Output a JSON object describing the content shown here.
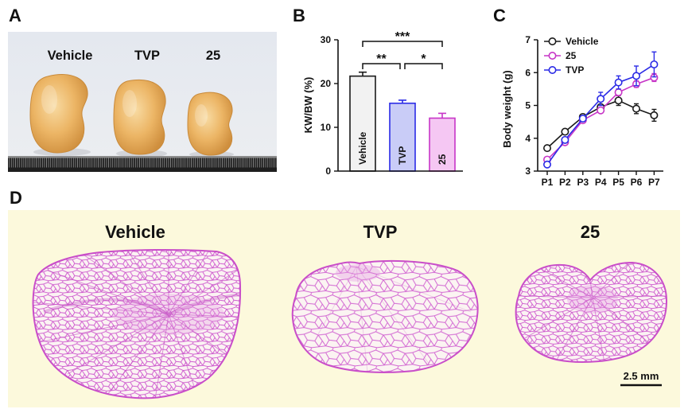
{
  "panel_a": {
    "label": "A",
    "groups": [
      "Vehicle",
      "TVP",
      "25"
    ]
  },
  "panel_b": {
    "label": "B"
  },
  "panel_c": {
    "label": "C"
  },
  "panel_d": {
    "label": "D",
    "groups": [
      "Vehicle",
      "TVP",
      "25"
    ],
    "scale_bar": "2.5 mm"
  },
  "chart_data": [
    {
      "type": "bar",
      "categories": [
        "Vehicle",
        "TVP",
        "25"
      ],
      "values": [
        21.7,
        15.5,
        12.1
      ],
      "errors": [
        0.9,
        0.7,
        1.1
      ],
      "ylabel": "KW/BW (%)",
      "ylim": [
        0,
        30
      ],
      "yticks": [
        0,
        10,
        20,
        30
      ],
      "grid": false,
      "bar_fill": [
        "#f2f2f2",
        "#c9ccf7",
        "#f5c7f3"
      ],
      "bar_stroke": [
        "#1a1a1a",
        "#2b2be6",
        "#c735c7"
      ],
      "significance": [
        {
          "from": 0,
          "to": 2,
          "label": "***"
        },
        {
          "from": 0,
          "to": 1,
          "label": "**"
        },
        {
          "from": 1,
          "to": 2,
          "label": "*"
        }
      ]
    },
    {
      "type": "line",
      "categories": [
        "P1",
        "P2",
        "P3",
        "P4",
        "P5",
        "P6",
        "P7"
      ],
      "ylabel": "Body weight (g)",
      "ylim": [
        3,
        7
      ],
      "yticks": [
        3,
        4,
        5,
        6,
        7
      ],
      "grid": false,
      "legend": "top-left",
      "series": [
        {
          "name": "Vehicle",
          "color": "#1a1a1a",
          "values": [
            3.7,
            4.2,
            4.65,
            4.95,
            5.15,
            4.9,
            4.7
          ],
          "errors": [
            0.08,
            0.06,
            0.06,
            0.08,
            0.15,
            0.15,
            0.18
          ]
        },
        {
          "name": "25",
          "color": "#c735c7",
          "values": [
            3.35,
            3.88,
            4.55,
            4.85,
            5.4,
            5.65,
            5.85
          ],
          "errors": [
            0.08,
            0.06,
            0.06,
            0.08,
            0.1,
            0.1,
            0.12
          ]
        },
        {
          "name": "TVP",
          "color": "#2b2be6",
          "values": [
            3.2,
            3.95,
            4.6,
            5.2,
            5.7,
            5.9,
            6.25
          ],
          "errors": [
            0.06,
            0.06,
            0.08,
            0.2,
            0.2,
            0.3,
            0.38
          ]
        }
      ]
    }
  ]
}
